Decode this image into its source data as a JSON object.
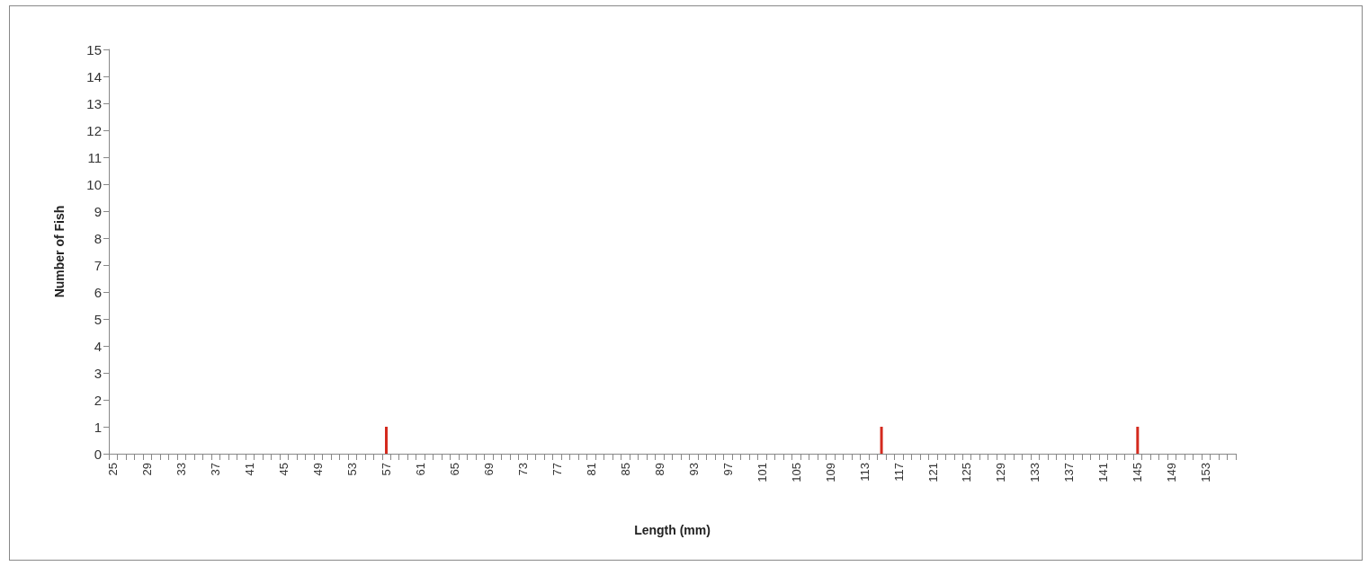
{
  "chart_data": {
    "type": "bar",
    "xlabel": "Length (mm)",
    "ylabel": "Number of Fish",
    "categories": [
      "25",
      null,
      null,
      null,
      "29",
      null,
      null,
      null,
      "33",
      null,
      null,
      null,
      "37",
      null,
      null,
      null,
      "41",
      null,
      null,
      null,
      "45",
      null,
      null,
      null,
      "49",
      null,
      null,
      null,
      "53",
      null,
      null,
      null,
      "57",
      null,
      null,
      null,
      "61",
      null,
      null,
      null,
      "65",
      null,
      null,
      null,
      "69",
      null,
      null,
      null,
      "73",
      null,
      null,
      null,
      "77",
      null,
      null,
      null,
      "81",
      null,
      null,
      null,
      "85",
      null,
      null,
      null,
      "89",
      null,
      null,
      null,
      "93",
      null,
      null,
      null,
      "97",
      null,
      null,
      null,
      "101",
      null,
      null,
      null,
      "105",
      null,
      null,
      null,
      "109",
      null,
      null,
      null,
      "113",
      null,
      null,
      null,
      "117",
      null,
      null,
      null,
      "121",
      null,
      null,
      null,
      "125",
      null,
      null,
      null,
      "129",
      null,
      null,
      null,
      "133",
      null,
      null,
      null,
      "137",
      null,
      null,
      null,
      "141",
      null,
      null,
      null,
      "145",
      null,
      null,
      null,
      "149",
      null,
      null,
      null,
      "153",
      null,
      null,
      null
    ],
    "values": [
      0,
      0,
      0,
      0,
      0,
      0,
      0,
      0,
      0,
      0,
      0,
      0,
      0,
      0,
      0,
      0,
      0,
      0,
      0,
      0,
      0,
      0,
      0,
      0,
      0,
      0,
      0,
      0,
      0,
      0,
      0,
      0,
      1,
      0,
      0,
      0,
      0,
      0,
      0,
      0,
      0,
      0,
      0,
      0,
      0,
      0,
      0,
      0,
      0,
      0,
      0,
      0,
      0,
      0,
      0,
      0,
      0,
      0,
      0,
      0,
      0,
      0,
      0,
      0,
      0,
      0,
      0,
      0,
      0,
      0,
      0,
      0,
      0,
      0,
      0,
      0,
      0,
      0,
      0,
      0,
      0,
      0,
      0,
      0,
      0,
      0,
      0,
      0,
      0,
      0,
      1,
      0,
      0,
      0,
      0,
      0,
      0,
      0,
      0,
      0,
      0,
      0,
      0,
      0,
      0,
      0,
      0,
      0,
      0,
      0,
      0,
      0,
      0,
      0,
      0,
      0,
      0,
      0,
      0,
      0,
      1,
      0,
      0,
      0,
      0,
      0,
      0,
      0,
      0,
      0,
      0,
      0
    ],
    "color": "#d42a1e",
    "ylim": [
      0,
      15
    ],
    "yticks": [
      0,
      1,
      2,
      3,
      4,
      5,
      6,
      7,
      8,
      9,
      10,
      11,
      12,
      13,
      14,
      15
    ],
    "grid": false
  }
}
